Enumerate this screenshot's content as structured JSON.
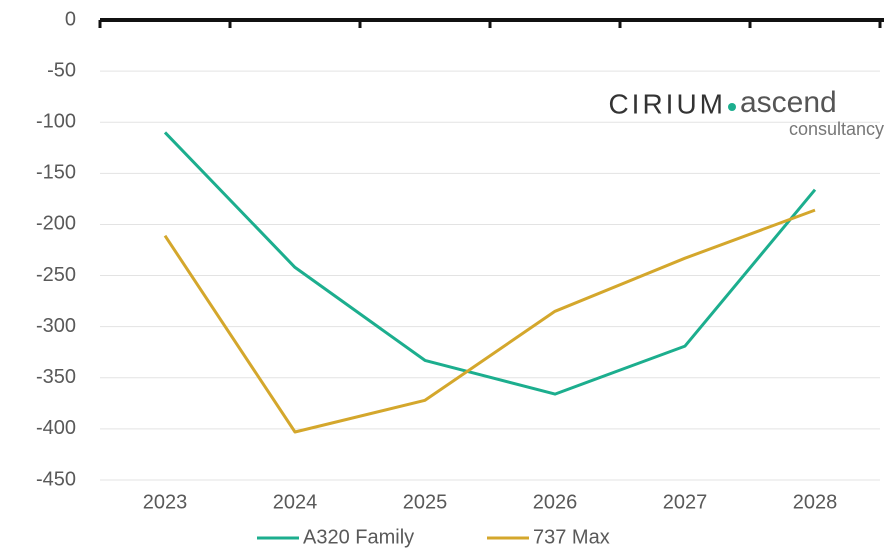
{
  "chart_data": {
    "type": "line",
    "categories": [
      "2023",
      "2024",
      "2025",
      "2026",
      "2027",
      "2028"
    ],
    "series": [
      {
        "name": "A320 Family",
        "color": "#1cae8e",
        "values": [
          -110,
          -242,
          -333,
          -366,
          -319,
          -166
        ]
      },
      {
        "name": "737 Max",
        "color": "#d4a72c",
        "values": [
          -211,
          -403,
          -372,
          -285,
          -233,
          -186
        ]
      }
    ],
    "ylim": [
      -450,
      0
    ],
    "yticks": [
      0,
      -50,
      -100,
      -150,
      -200,
      -250,
      -300,
      -350,
      -400,
      -450
    ],
    "grid": true,
    "legend": "bottom",
    "logo": {
      "brand": "CIRIUM",
      "product": "ascend",
      "tagline": "consultancy"
    }
  }
}
